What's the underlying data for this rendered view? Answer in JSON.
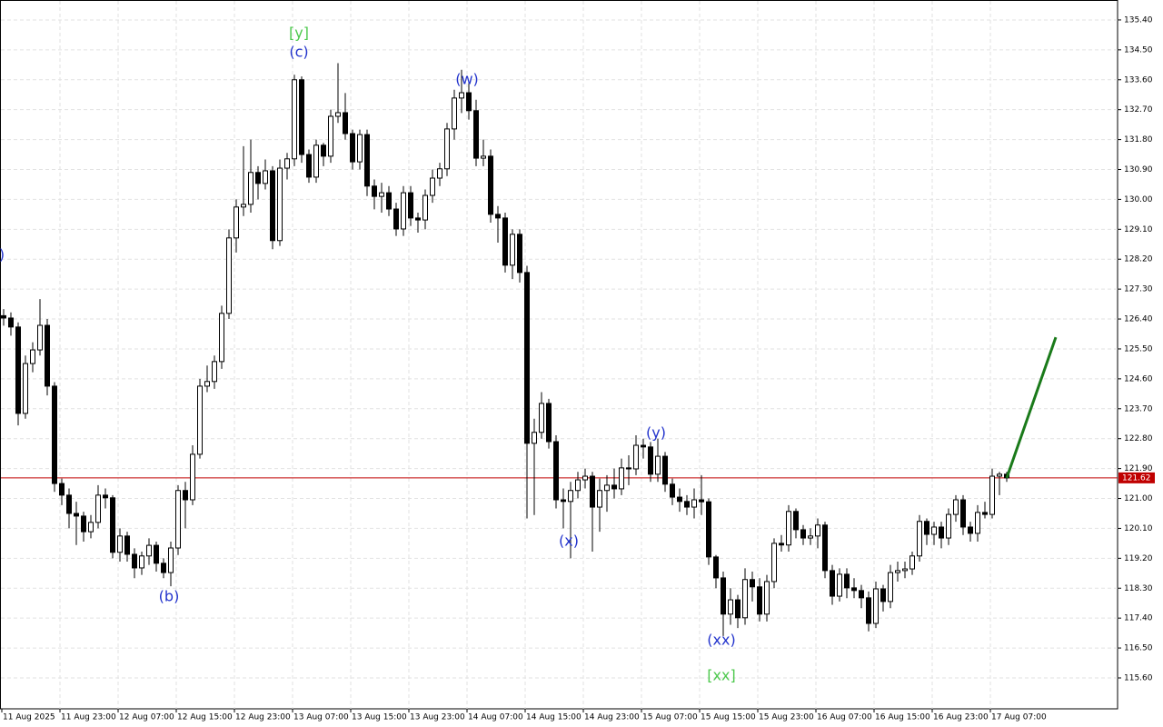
{
  "chart_data": {
    "type": "candlestick",
    "ylim": [
      114.67,
      136.0
    ],
    "yticks": [
      {
        "value": 115.6,
        "label": "115.60"
      },
      {
        "value": 116.5,
        "label": "116.50"
      },
      {
        "value": 117.4,
        "label": "117.40"
      },
      {
        "value": 118.3,
        "label": "118.30"
      },
      {
        "value": 119.2,
        "label": "119.20"
      },
      {
        "value": 120.1,
        "label": "120.10"
      },
      {
        "value": 121.0,
        "label": "121.00"
      },
      {
        "value": 121.9,
        "label": "121.90"
      },
      {
        "value": 122.8,
        "label": "122.80"
      },
      {
        "value": 123.7,
        "label": "123.70"
      },
      {
        "value": 124.6,
        "label": "124.60"
      },
      {
        "value": 125.5,
        "label": "125.50"
      },
      {
        "value": 126.4,
        "label": "126.40"
      },
      {
        "value": 127.3,
        "label": "127.30"
      },
      {
        "value": 128.2,
        "label": "128.20"
      },
      {
        "value": 129.1,
        "label": "129.10"
      },
      {
        "value": 130.0,
        "label": "130.00"
      },
      {
        "value": 130.9,
        "label": "130.90"
      },
      {
        "value": 131.8,
        "label": "131.80"
      },
      {
        "value": 132.7,
        "label": "132.70"
      },
      {
        "value": 133.6,
        "label": "133.60"
      },
      {
        "value": 134.5,
        "label": "134.50"
      },
      {
        "value": 135.4,
        "label": "135.40"
      }
    ],
    "xtick_labels": [
      "11 Aug 2025",
      "11 Aug 23:00",
      "12 Aug 07:00",
      "12 Aug 15:00",
      "12 Aug 23:00",
      "13 Aug 07:00",
      "13 Aug 15:00",
      "13 Aug 23:00",
      "14 Aug 07:00",
      "14 Aug 15:00",
      "14 Aug 23:00",
      "15 Aug 07:00",
      "15 Aug 15:00",
      "15 Aug 23:00",
      "16 Aug 07:00",
      "16 Aug 15:00",
      "16 Aug 23:00",
      "17 Aug 07:00"
    ],
    "grid": true,
    "up_color": "#ffffff",
    "down_color": "#000000",
    "current_price": 121.62,
    "current_price_color": "#c00000",
    "forecast_target": 125.85,
    "forecast_color": "#1a7a1a",
    "annotations": [
      {
        "text": "[y]",
        "color": "#4ec94e"
      },
      {
        "text": "(c)",
        "color": "#2233cc"
      },
      {
        "text": "(w)",
        "color": "#2233cc"
      },
      {
        "text": "(b)",
        "color": "#2233cc"
      },
      {
        "text": "(x)",
        "color": "#2233cc"
      },
      {
        "text": "(y)",
        "color": "#2233cc"
      },
      {
        "text": "(xx)",
        "color": "#2233cc"
      },
      {
        "text": "[xx]",
        "color": "#4ec94e"
      },
      {
        "text": ")",
        "color": "#2233cc"
      }
    ],
    "candles": [
      [
        126.5,
        126.7,
        126.2,
        126.43
      ],
      [
        126.43,
        126.6,
        125.9,
        126.16
      ],
      [
        126.16,
        126.3,
        123.2,
        123.56
      ],
      [
        123.56,
        125.3,
        123.4,
        125.06
      ],
      [
        125.06,
        125.7,
        124.8,
        125.47
      ],
      [
        125.47,
        127.0,
        125.3,
        126.21
      ],
      [
        126.21,
        126.4,
        124.1,
        124.38
      ],
      [
        124.38,
        124.5,
        121.2,
        121.45
      ],
      [
        121.45,
        121.6,
        120.8,
        121.1
      ],
      [
        121.1,
        121.3,
        120.1,
        120.55
      ],
      [
        120.55,
        120.9,
        119.6,
        120.47
      ],
      [
        120.47,
        120.6,
        119.7,
        120.0
      ],
      [
        120.0,
        120.5,
        119.8,
        120.28
      ],
      [
        120.28,
        121.4,
        120.1,
        121.1
      ],
      [
        121.1,
        121.3,
        120.7,
        121.02
      ],
      [
        121.02,
        121.1,
        119.2,
        119.38
      ],
      [
        119.38,
        120.1,
        119.1,
        119.87
      ],
      [
        119.87,
        120.0,
        119.1,
        119.32
      ],
      [
        119.32,
        119.5,
        118.6,
        118.91
      ],
      [
        118.91,
        119.4,
        118.7,
        119.27
      ],
      [
        119.27,
        119.8,
        119.0,
        119.59
      ],
      [
        119.59,
        119.7,
        118.8,
        119.05
      ],
      [
        119.05,
        119.2,
        118.6,
        118.77
      ],
      [
        118.77,
        119.7,
        118.36,
        119.51
      ],
      [
        119.51,
        121.4,
        119.3,
        121.24
      ],
      [
        121.24,
        121.5,
        120.1,
        120.96
      ],
      [
        120.96,
        122.6,
        120.8,
        122.33
      ],
      [
        122.33,
        124.6,
        122.2,
        124.38
      ],
      [
        124.38,
        125.0,
        124.2,
        124.52
      ],
      [
        124.52,
        125.3,
        124.3,
        125.12
      ],
      [
        125.12,
        126.8,
        124.9,
        126.57
      ],
      [
        126.57,
        129.1,
        126.4,
        128.84
      ],
      [
        128.84,
        130.0,
        128.4,
        129.77
      ],
      [
        129.77,
        131.6,
        129.5,
        129.85
      ],
      [
        129.85,
        131.8,
        129.6,
        130.81
      ],
      [
        130.81,
        131.0,
        130.0,
        130.48
      ],
      [
        130.48,
        131.2,
        130.3,
        130.86
      ],
      [
        130.86,
        131.0,
        128.5,
        128.76
      ],
      [
        128.76,
        131.2,
        128.6,
        130.94
      ],
      [
        130.94,
        131.4,
        130.6,
        131.22
      ],
      [
        131.22,
        133.75,
        131.0,
        133.6
      ],
      [
        133.6,
        133.7,
        131.1,
        131.35
      ],
      [
        131.35,
        131.5,
        130.5,
        130.67
      ],
      [
        130.67,
        131.8,
        130.5,
        131.63
      ],
      [
        131.63,
        131.7,
        131.0,
        131.3
      ],
      [
        131.3,
        132.7,
        131.1,
        132.5
      ],
      [
        132.5,
        134.1,
        132.3,
        132.61
      ],
      [
        132.61,
        133.2,
        131.8,
        131.98
      ],
      [
        131.98,
        132.1,
        130.9,
        131.13
      ],
      [
        131.13,
        132.1,
        130.9,
        131.95
      ],
      [
        131.95,
        132.1,
        130.1,
        130.4
      ],
      [
        130.4,
        130.6,
        129.7,
        130.09
      ],
      [
        130.09,
        130.5,
        129.6,
        130.2
      ],
      [
        130.2,
        130.4,
        129.5,
        129.71
      ],
      [
        129.71,
        129.9,
        128.9,
        129.11
      ],
      [
        129.11,
        130.4,
        128.9,
        130.2
      ],
      [
        130.2,
        130.4,
        129.2,
        129.44
      ],
      [
        129.44,
        129.6,
        129.0,
        129.38
      ],
      [
        129.38,
        130.3,
        129.1,
        130.12
      ],
      [
        130.12,
        130.9,
        129.9,
        130.64
      ],
      [
        130.64,
        131.1,
        130.4,
        130.92
      ],
      [
        130.92,
        132.3,
        130.7,
        132.12
      ],
      [
        132.12,
        133.3,
        131.8,
        133.05
      ],
      [
        133.05,
        133.9,
        132.6,
        133.21
      ],
      [
        133.21,
        133.5,
        132.4,
        132.67
      ],
      [
        132.67,
        133.0,
        131.0,
        131.24
      ],
      [
        131.24,
        131.8,
        131.0,
        131.3
      ],
      [
        131.3,
        131.5,
        129.3,
        129.55
      ],
      [
        129.55,
        129.8,
        128.7,
        129.44
      ],
      [
        129.44,
        129.6,
        127.8,
        128.02
      ],
      [
        128.02,
        129.1,
        127.6,
        128.95
      ],
      [
        128.95,
        129.1,
        127.5,
        127.8
      ],
      [
        127.8,
        128.0,
        120.4,
        122.66
      ],
      [
        122.66,
        123.4,
        120.5,
        122.99
      ],
      [
        122.99,
        124.2,
        122.8,
        123.86
      ],
      [
        123.86,
        124.0,
        122.5,
        122.71
      ],
      [
        122.71,
        122.9,
        120.7,
        120.96
      ],
      [
        120.96,
        121.3,
        120.1,
        120.91
      ],
      [
        120.91,
        121.5,
        119.2,
        121.24
      ],
      [
        121.24,
        121.8,
        121.0,
        121.56
      ],
      [
        121.56,
        121.9,
        121.3,
        121.67
      ],
      [
        121.67,
        121.8,
        119.4,
        120.74
      ],
      [
        120.74,
        121.6,
        120.0,
        121.24
      ],
      [
        121.24,
        121.7,
        120.6,
        121.4
      ],
      [
        121.4,
        121.9,
        121.0,
        121.29
      ],
      [
        121.29,
        122.2,
        121.1,
        121.92
      ],
      [
        121.92,
        122.3,
        121.4,
        121.89
      ],
      [
        121.89,
        122.9,
        121.7,
        122.6
      ],
      [
        122.6,
        122.8,
        122.2,
        122.55
      ],
      [
        122.55,
        122.7,
        121.5,
        121.73
      ],
      [
        121.73,
        122.8,
        121.5,
        122.27
      ],
      [
        122.27,
        122.4,
        121.2,
        121.43
      ],
      [
        121.43,
        121.6,
        120.8,
        121.04
      ],
      [
        121.04,
        121.3,
        120.6,
        120.91
      ],
      [
        120.91,
        121.1,
        120.5,
        120.74
      ],
      [
        120.74,
        121.3,
        120.4,
        120.96
      ],
      [
        120.96,
        121.7,
        120.5,
        120.9
      ],
      [
        120.9,
        121.0,
        119.0,
        119.24
      ],
      [
        119.24,
        119.3,
        118.3,
        118.61
      ],
      [
        118.61,
        118.8,
        116.86,
        117.52
      ],
      [
        117.52,
        118.3,
        117.2,
        117.95
      ],
      [
        117.95,
        118.1,
        117.1,
        117.41
      ],
      [
        117.41,
        118.9,
        117.2,
        118.56
      ],
      [
        118.56,
        118.8,
        117.9,
        118.34
      ],
      [
        118.34,
        118.6,
        117.3,
        117.52
      ],
      [
        117.52,
        118.7,
        117.3,
        118.5
      ],
      [
        118.5,
        119.8,
        118.3,
        119.65
      ],
      [
        119.65,
        119.9,
        119.4,
        119.6
      ],
      [
        119.6,
        120.8,
        119.4,
        120.61
      ],
      [
        120.61,
        120.7,
        119.8,
        120.06
      ],
      [
        120.06,
        120.2,
        119.6,
        119.81
      ],
      [
        119.81,
        120.1,
        119.6,
        119.87
      ],
      [
        119.87,
        120.4,
        119.5,
        120.2
      ],
      [
        120.2,
        120.3,
        118.6,
        118.83
      ],
      [
        118.83,
        119.0,
        117.8,
        118.06
      ],
      [
        118.06,
        118.9,
        117.9,
        118.72
      ],
      [
        118.72,
        118.9,
        118.0,
        118.31
      ],
      [
        118.31,
        118.6,
        118.0,
        118.23
      ],
      [
        118.23,
        118.4,
        117.7,
        118.01
      ],
      [
        118.01,
        118.2,
        117.0,
        117.24
      ],
      [
        117.24,
        118.5,
        117.1,
        118.28
      ],
      [
        118.28,
        118.4,
        117.6,
        117.9
      ],
      [
        117.9,
        119.0,
        117.7,
        118.77
      ],
      [
        118.77,
        119.1,
        118.5,
        118.83
      ],
      [
        118.83,
        119.1,
        118.6,
        118.88
      ],
      [
        118.88,
        119.4,
        118.7,
        119.27
      ],
      [
        119.27,
        120.5,
        119.1,
        120.31
      ],
      [
        120.31,
        120.4,
        119.6,
        119.92
      ],
      [
        119.92,
        120.3,
        119.6,
        120.14
      ],
      [
        120.14,
        120.3,
        119.5,
        119.81
      ],
      [
        119.81,
        120.7,
        119.6,
        120.52
      ],
      [
        120.52,
        121.1,
        120.3,
        120.96
      ],
      [
        120.96,
        121.1,
        119.9,
        120.14
      ],
      [
        120.14,
        120.3,
        119.7,
        119.95
      ],
      [
        119.95,
        120.8,
        119.7,
        120.58
      ],
      [
        120.58,
        120.9,
        120.4,
        120.52
      ],
      [
        120.52,
        121.9,
        120.4,
        121.67
      ],
      [
        121.67,
        121.8,
        121.1,
        121.73
      ],
      [
        121.73,
        121.8,
        121.5,
        121.62
      ]
    ]
  }
}
